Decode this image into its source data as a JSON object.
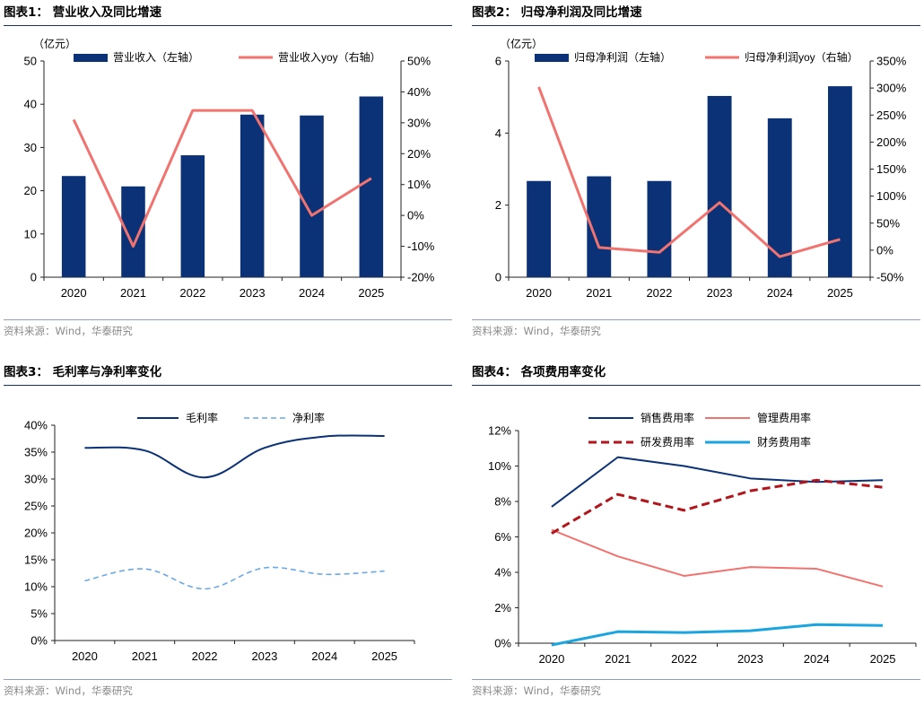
{
  "source_text": "资料来源：Wind，华泰研究",
  "colors": {
    "navy": "#0b3176",
    "coral": "#f1736f",
    "darkred": "#b1161c",
    "cyan": "#1aa5e0",
    "lightblue": "#6aa8e8"
  },
  "charts": [
    {
      "title": "图表1：  营业收入及同比增速",
      "unit": "（亿元）",
      "legend": [
        "营业收入（左轴）",
        "营业收入yoy（右轴）"
      ]
    },
    {
      "title": "图表2：  归母净利润及同比增速",
      "unit": "（亿元）",
      "legend": [
        "归母净利润（左轴）",
        "归母净利润yoy（右轴）"
      ]
    },
    {
      "title": "图表3：  毛利率与净利率变化",
      "legend": [
        "毛利率",
        "净利率"
      ]
    },
    {
      "title": "图表4：  各项费用率变化",
      "legend": [
        "销售费用率",
        "管理费用率",
        "研发费用率",
        "财务费用率"
      ]
    }
  ],
  "chart_data": [
    {
      "type": "bar+line",
      "title": "营业收入及同比增速",
      "categories": [
        "2020",
        "2021",
        "2022",
        "2023",
        "2024",
        "2025"
      ],
      "series": [
        {
          "name": "营业收入（左轴）",
          "type": "bar",
          "axis": "left",
          "values": [
            23.4,
            21.0,
            28.2,
            37.6,
            37.4,
            41.8
          ]
        },
        {
          "name": "营业收入yoy（右轴）",
          "type": "line",
          "axis": "right",
          "values": [
            31,
            -10,
            34,
            34,
            0,
            12
          ]
        }
      ],
      "ylim_left": [
        0,
        50
      ],
      "yticks_left": [
        0,
        10,
        20,
        30,
        40,
        50
      ],
      "ylim_right": [
        -20,
        50
      ],
      "yticks_right": [
        -20,
        -10,
        0,
        10,
        20,
        30,
        40,
        50
      ],
      "ytick_labels_right": [
        "-20%",
        "-10%",
        "0%",
        "10%",
        "20%",
        "30%",
        "40%",
        "50%"
      ]
    },
    {
      "type": "bar+line",
      "title": "归母净利润及同比增速",
      "categories": [
        "2020",
        "2021",
        "2022",
        "2023",
        "2024",
        "2025"
      ],
      "series": [
        {
          "name": "归母净利润（左轴）",
          "type": "bar",
          "axis": "left",
          "values": [
            2.67,
            2.8,
            2.67,
            5.03,
            4.41,
            5.3
          ]
        },
        {
          "name": "归母净利润yoy（右轴）",
          "type": "line",
          "axis": "right",
          "values": [
            302,
            5,
            -4,
            88,
            -12,
            20
          ]
        }
      ],
      "ylim_left": [
        0,
        6
      ],
      "yticks_left": [
        0,
        2,
        4,
        6
      ],
      "ylim_right": [
        -50,
        350
      ],
      "yticks_right": [
        -50,
        0,
        50,
        100,
        150,
        200,
        250,
        300,
        350
      ],
      "ytick_labels_right": [
        "-50%",
        "0%",
        "50%",
        "100%",
        "150%",
        "200%",
        "250%",
        "300%",
        "350%"
      ]
    },
    {
      "type": "line",
      "title": "毛利率与净利率变化",
      "categories": [
        "2020",
        "2021",
        "2022",
        "2023",
        "2024",
        "2025"
      ],
      "series": [
        {
          "name": "毛利率",
          "style": "solid",
          "values": [
            35.8,
            35.3,
            30.3,
            35.8,
            37.9,
            38.0
          ]
        },
        {
          "name": "净利率",
          "style": "dashed",
          "values": [
            11.1,
            13.3,
            9.6,
            13.5,
            12.3,
            12.9
          ]
        }
      ],
      "ylim": [
        0,
        40
      ],
      "yticks": [
        0,
        5,
        10,
        15,
        20,
        25,
        30,
        35,
        40
      ],
      "ytick_labels": [
        "0%",
        "5%",
        "10%",
        "15%",
        "20%",
        "25%",
        "30%",
        "35%",
        "40%"
      ]
    },
    {
      "type": "line",
      "title": "各项费用率变化",
      "categories": [
        "2020",
        "2021",
        "2022",
        "2023",
        "2024",
        "2025"
      ],
      "series": [
        {
          "name": "销售费用率",
          "style": "solid",
          "values": [
            7.7,
            10.5,
            10.0,
            9.3,
            9.1,
            9.2
          ]
        },
        {
          "name": "管理费用率",
          "style": "solid",
          "values": [
            6.4,
            4.9,
            3.8,
            4.3,
            4.2,
            3.2
          ]
        },
        {
          "name": "研发费用率",
          "style": "dashed",
          "values": [
            6.2,
            8.4,
            7.5,
            8.6,
            9.2,
            8.8
          ]
        },
        {
          "name": "财务费用率",
          "style": "solid",
          "values": [
            -0.1,
            0.65,
            0.6,
            0.7,
            1.05,
            1.0
          ]
        }
      ],
      "ylim": [
        0,
        12
      ],
      "yticks": [
        0,
        2,
        4,
        6,
        8,
        10,
        12
      ],
      "ytick_labels": [
        "0%",
        "2%",
        "4%",
        "6%",
        "8%",
        "10%",
        "12%"
      ]
    }
  ]
}
